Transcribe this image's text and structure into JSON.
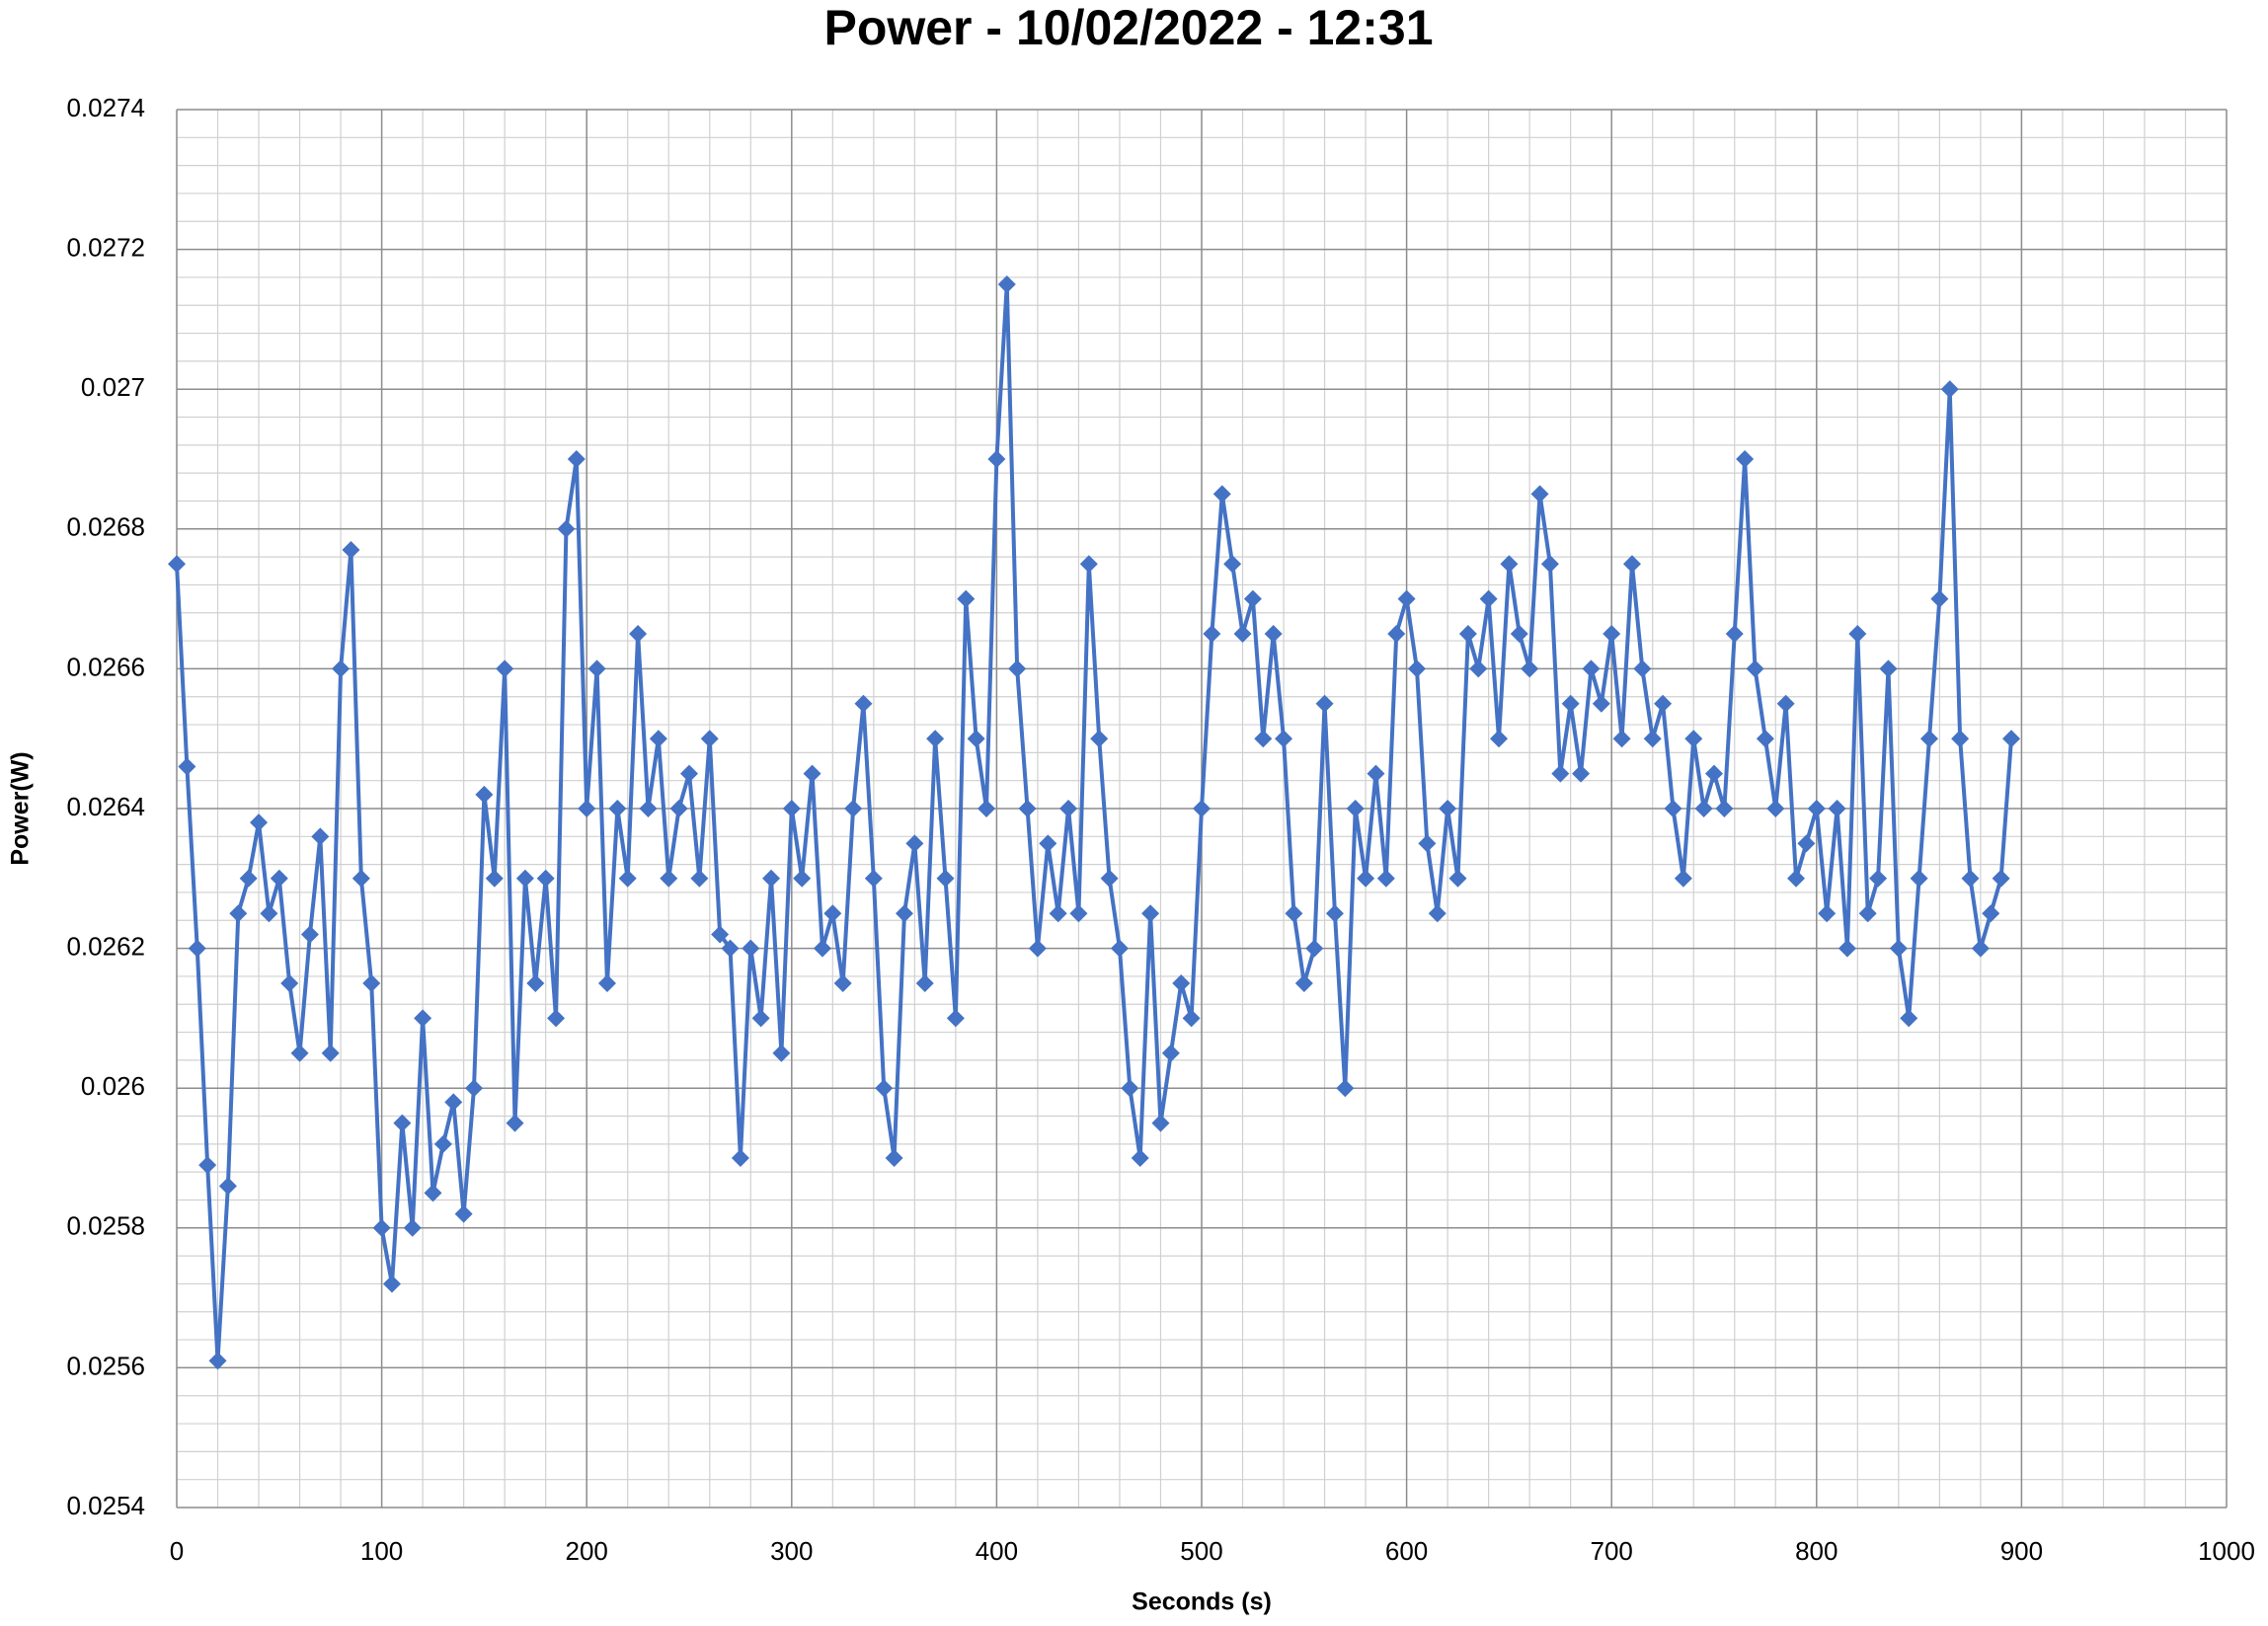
{
  "chart_data": {
    "type": "line",
    "title": "Power - 10/02/2022 - 12:31",
    "x_label": "Seconds (s)",
    "y_label": "Power(W)",
    "color": "#4472c4",
    "marker": "diamond",
    "grid": true,
    "minor_divisions": 5,
    "xlim": [
      0,
      1000
    ],
    "xticks": [
      0,
      100,
      200,
      300,
      400,
      500,
      600,
      700,
      800,
      900,
      1000
    ],
    "ylim": [
      0.0254,
      0.0274
    ],
    "yticks": [
      0.0254,
      0.0256,
      0.0258,
      0.026,
      0.0262,
      0.0264,
      0.0266,
      0.0268,
      0.027,
      0.0272,
      0.0274
    ],
    "x": [
      0,
      5,
      10,
      15,
      20,
      25,
      30,
      35,
      40,
      45,
      50,
      55,
      60,
      65,
      70,
      75,
      80,
      85,
      90,
      95,
      100,
      105,
      110,
      115,
      120,
      125,
      130,
      135,
      140,
      145,
      150,
      155,
      160,
      165,
      170,
      175,
      180,
      185,
      190,
      195,
      200,
      205,
      210,
      215,
      220,
      225,
      230,
      235,
      240,
      245,
      250,
      255,
      260,
      265,
      270,
      275,
      280,
      285,
      290,
      295,
      300,
      305,
      310,
      315,
      320,
      325,
      330,
      335,
      340,
      345,
      350,
      355,
      360,
      365,
      370,
      375,
      380,
      385,
      390,
      395,
      400,
      405,
      410,
      415,
      420,
      425,
      430,
      435,
      440,
      445,
      450,
      455,
      460,
      465,
      470,
      475,
      480,
      485,
      490,
      495,
      500,
      505,
      510,
      515,
      520,
      525,
      530,
      535,
      540,
      545,
      550,
      555,
      560,
      565,
      570,
      575,
      580,
      585,
      590,
      595,
      600,
      605,
      610,
      615,
      620,
      625,
      630,
      635,
      640,
      645,
      650,
      655,
      660,
      665,
      670,
      675,
      680,
      685,
      690,
      695,
      700,
      705,
      710,
      715,
      720,
      725,
      730,
      735,
      740,
      745,
      750,
      755,
      760,
      765,
      770,
      775,
      780,
      785,
      790,
      795,
      800,
      805,
      810,
      815,
      820,
      825,
      830,
      835,
      840,
      845,
      850,
      855,
      860,
      865,
      870,
      875,
      880,
      885,
      890,
      895
    ],
    "values": [
      0.02675,
      0.02646,
      0.0262,
      0.02589,
      0.02561,
      0.02586,
      0.02625,
      0.0263,
      0.02638,
      0.02625,
      0.0263,
      0.02615,
      0.02605,
      0.02622,
      0.02636,
      0.02605,
      0.0266,
      0.02677,
      0.0263,
      0.02615,
      0.0258,
      0.02572,
      0.02595,
      0.0258,
      0.0261,
      0.02585,
      0.02592,
      0.02598,
      0.02582,
      0.026,
      0.02642,
      0.0263,
      0.0266,
      0.02595,
      0.0263,
      0.02615,
      0.0263,
      0.0261,
      0.0268,
      0.0269,
      0.0264,
      0.0266,
      0.02615,
      0.0264,
      0.0263,
      0.02665,
      0.0264,
      0.0265,
      0.0263,
      0.0264,
      0.02645,
      0.0263,
      0.0265,
      0.02622,
      0.0262,
      0.0259,
      0.0262,
      0.0261,
      0.0263,
      0.02605,
      0.0264,
      0.0263,
      0.02645,
      0.0262,
      0.02625,
      0.02615,
      0.0264,
      0.02655,
      0.0263,
      0.026,
      0.0259,
      0.02625,
      0.02635,
      0.02615,
      0.0265,
      0.0263,
      0.0261,
      0.0267,
      0.0265,
      0.0264,
      0.0269,
      0.02715,
      0.0266,
      0.0264,
      0.0262,
      0.02635,
      0.02625,
      0.0264,
      0.02625,
      0.02675,
      0.0265,
      0.0263,
      0.0262,
      0.026,
      0.0259,
      0.02625,
      0.02595,
      0.02605,
      0.02615,
      0.0261,
      0.0264,
      0.02665,
      0.02685,
      0.02675,
      0.02665,
      0.0267,
      0.0265,
      0.02665,
      0.0265,
      0.02625,
      0.02615,
      0.0262,
      0.02655,
      0.02625,
      0.026,
      0.0264,
      0.0263,
      0.02645,
      0.0263,
      0.02665,
      0.0267,
      0.0266,
      0.02635,
      0.02625,
      0.0264,
      0.0263,
      0.02665,
      0.0266,
      0.0267,
      0.0265,
      0.02675,
      0.02665,
      0.0266,
      0.02685,
      0.02675,
      0.02645,
      0.02655,
      0.02645,
      0.0266,
      0.02655,
      0.02665,
      0.0265,
      0.02675,
      0.0266,
      0.0265,
      0.02655,
      0.0264,
      0.0263,
      0.0265,
      0.0264,
      0.02645,
      0.0264,
      0.02665,
      0.0269,
      0.0266,
      0.0265,
      0.0264,
      0.02655,
      0.0263,
      0.02635,
      0.0264,
      0.02625,
      0.0264,
      0.0262,
      0.02665,
      0.02625,
      0.0263,
      0.0266,
      0.0262,
      0.0261,
      0.0263,
      0.0265,
      0.0267,
      0.027,
      0.0265,
      0.0263,
      0.0262,
      0.02625,
      0.0263,
      0.0265
    ]
  }
}
